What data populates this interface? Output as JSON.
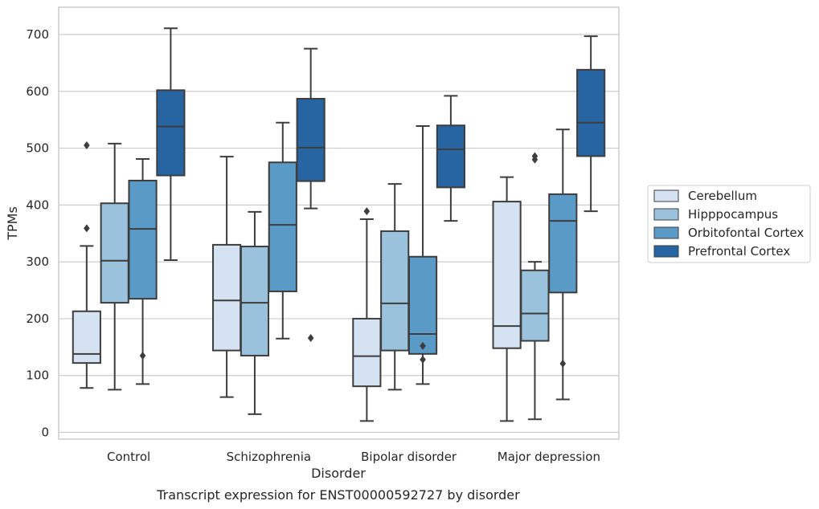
{
  "chart_data": {
    "type": "box",
    "title": "",
    "caption": "Transcript expression for ENST00000592727 by disorder",
    "xlabel": "Disorder",
    "ylabel": "TPMs",
    "ylim": [
      -12,
      748
    ],
    "yticks": [
      0,
      100,
      200,
      300,
      400,
      500,
      600,
      700
    ],
    "grid": "horizontal",
    "legend_position": "right",
    "categories": [
      "Control",
      "Schizophrenia",
      "Bipolar disorder",
      "Major depression"
    ],
    "series": [
      {
        "name": "Cerebellum",
        "color": "#d4e2f1",
        "boxes": [
          {
            "whisker_low": 78,
            "q1": 122,
            "median": 138,
            "q3": 213,
            "whisker_high": 328,
            "outliers": [
              359,
              505
            ]
          },
          {
            "whisker_low": 62,
            "q1": 144,
            "median": 232,
            "q3": 330,
            "whisker_high": 485,
            "outliers": []
          },
          {
            "whisker_low": 20,
            "q1": 81,
            "median": 134,
            "q3": 200,
            "whisker_high": 375,
            "outliers": [
              389
            ]
          },
          {
            "whisker_low": 20,
            "q1": 148,
            "median": 187,
            "q3": 406,
            "whisker_high": 449,
            "outliers": []
          }
        ]
      },
      {
        "name": "Hipppocampus",
        "color": "#9ac2dd",
        "boxes": [
          {
            "whisker_low": 75,
            "q1": 228,
            "median": 302,
            "q3": 403,
            "whisker_high": 508,
            "outliers": []
          },
          {
            "whisker_low": 32,
            "q1": 135,
            "median": 228,
            "q3": 327,
            "whisker_high": 388,
            "outliers": []
          },
          {
            "whisker_low": 75,
            "q1": 144,
            "median": 227,
            "q3": 354,
            "whisker_high": 437,
            "outliers": []
          },
          {
            "whisker_low": 23,
            "q1": 161,
            "median": 209,
            "q3": 285,
            "whisker_high": 300,
            "outliers": [
              480,
              486
            ]
          }
        ]
      },
      {
        "name": "Orbitofontal Cortex",
        "color": "#5a9ac7",
        "boxes": [
          {
            "whisker_low": 85,
            "q1": 235,
            "median": 358,
            "q3": 443,
            "whisker_high": 481,
            "outliers": [
              135
            ]
          },
          {
            "whisker_low": 165,
            "q1": 248,
            "median": 365,
            "q3": 475,
            "whisker_high": 545,
            "outliers": []
          },
          {
            "whisker_low": 85,
            "q1": 138,
            "median": 173,
            "q3": 309,
            "whisker_high": 539,
            "outliers": [
              128,
              152
            ]
          },
          {
            "whisker_low": 58,
            "q1": 246,
            "median": 372,
            "q3": 419,
            "whisker_high": 533,
            "outliers": [
              121
            ]
          }
        ]
      },
      {
        "name": "Prefrontal Cortex",
        "color": "#2665a2",
        "boxes": [
          {
            "whisker_low": 303,
            "q1": 452,
            "median": 538,
            "q3": 602,
            "whisker_high": 711,
            "outliers": []
          },
          {
            "whisker_low": 394,
            "q1": 442,
            "median": 501,
            "q3": 587,
            "whisker_high": 675,
            "outliers": [
              166
            ]
          },
          {
            "whisker_low": 372,
            "q1": 431,
            "median": 498,
            "q3": 540,
            "whisker_high": 592,
            "outliers": []
          },
          {
            "whisker_low": 389,
            "q1": 486,
            "median": 545,
            "q3": 638,
            "whisker_high": 697,
            "outliers": []
          }
        ]
      }
    ]
  }
}
